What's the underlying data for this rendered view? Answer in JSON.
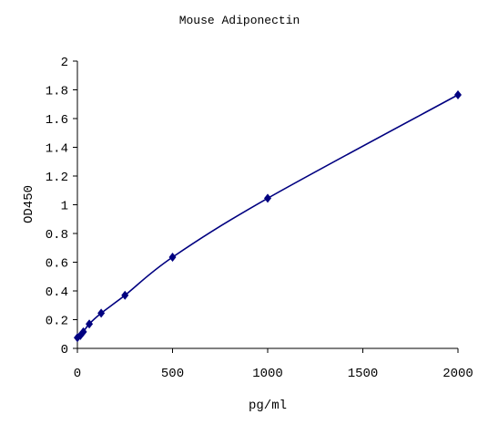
{
  "chart_data": {
    "type": "scatter",
    "title": "Mouse Adiponectin",
    "xlabel": "pg/ml",
    "ylabel": "OD450",
    "xlim": [
      0,
      2000
    ],
    "ylim": [
      0,
      2
    ],
    "xticks": [
      0,
      500,
      1000,
      1500,
      2000
    ],
    "yticks": [
      0,
      0.2,
      0.4,
      0.6,
      0.8,
      1,
      1.2,
      1.4,
      1.6,
      1.8,
      2
    ],
    "xtick_labels": [
      "0",
      "500",
      "1000",
      "1500",
      "2000"
    ],
    "ytick_labels": [
      "0",
      "0.2",
      "0.4",
      "0.6",
      "0.8",
      "1",
      "1.2",
      "1.4",
      "1.6",
      "1.8",
      "2"
    ],
    "grid": false,
    "legend": "none",
    "series": [
      {
        "marker": "diamond",
        "color": "#000080",
        "line": "smooth fitted curve",
        "x": [
          0,
          15.6,
          31.25,
          62.5,
          125,
          250,
          500,
          1000,
          2000
        ],
        "y": [
          0.075,
          0.09,
          0.115,
          0.17,
          0.245,
          0.37,
          0.635,
          1.045,
          1.765
        ]
      }
    ]
  }
}
